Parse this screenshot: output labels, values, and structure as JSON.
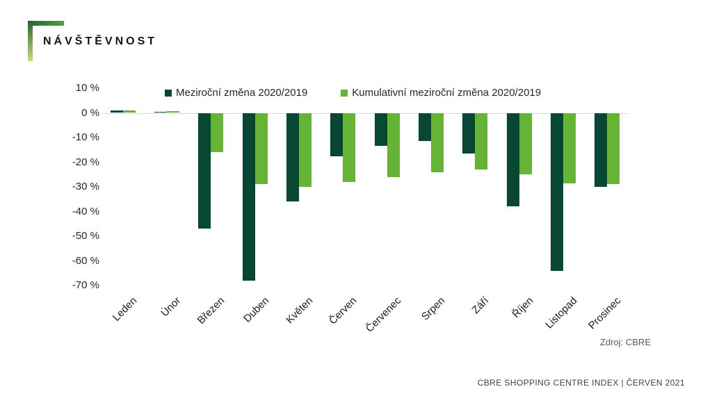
{
  "header": {
    "title": "NÁVŠTĚVNOST"
  },
  "brand_colors": {
    "bracket_dark": "#266333",
    "bracket_mid": "#4f9e44",
    "bracket_light": "#c9db7c"
  },
  "chart_data": {
    "type": "bar",
    "title": "NÁVŠTĚVNOST",
    "categories": [
      "Leden",
      "Únor",
      "Březen",
      "Duben",
      "Květen",
      "Červen",
      "Červenec",
      "Srpen",
      "Září",
      "Říjen",
      "Listopad",
      "Prosinec"
    ],
    "series": [
      {
        "name": "Meziroční změna 2020/2019",
        "color": "#084734",
        "values": [
          1,
          0.4,
          -47,
          -68,
          -36,
          -17.5,
          -13.5,
          -11.5,
          -16.5,
          -38,
          -64,
          -30
        ]
      },
      {
        "name": "Kumulativní meziroční změna  2020/2019",
        "color": "#66b435",
        "values": [
          1,
          0.8,
          -16,
          -29,
          -30,
          -28,
          -26,
          -24,
          -23,
          -25,
          -28.5,
          -29
        ]
      }
    ],
    "ylim": [
      -70,
      10
    ],
    "ytick_step": 10,
    "yticks": [
      "10 %",
      "0 %",
      "-10 %",
      "-20 %",
      "-30 %",
      "-40 %",
      "-50 %",
      "-60 %",
      "-70 %"
    ],
    "grid": "zero-line-only",
    "gridline_color": "#d9d9d9",
    "legend_position": "top",
    "xlabel": "",
    "ylabel": ""
  },
  "footer": {
    "source": "Zdroj: CBRE",
    "index_line": "CBRE SHOPPING CENTRE INDEX   |   ČERVEN 2021"
  }
}
